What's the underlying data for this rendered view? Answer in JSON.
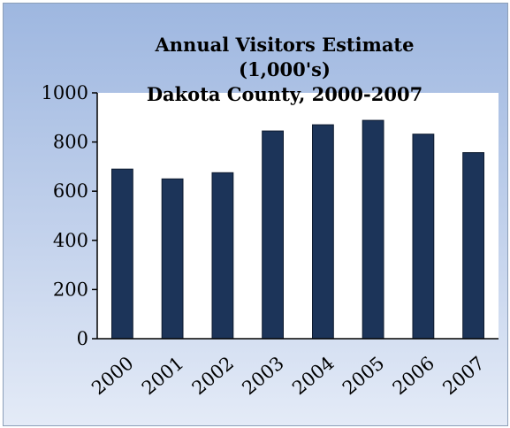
{
  "chart_data": {
    "type": "bar",
    "title_lines": [
      "Annual Visitors Estimate",
      "(1,000's)",
      "Dakota County, 2000-2007"
    ],
    "categories": [
      "2000",
      "2001",
      "2002",
      "2003",
      "2004",
      "2005",
      "2006",
      "2007"
    ],
    "values": [
      690,
      650,
      675,
      845,
      870,
      888,
      832,
      757
    ],
    "ylim": [
      0,
      1000
    ],
    "yticks": [
      "0",
      "200",
      "400",
      "600",
      "800",
      "1000"
    ],
    "grid": false,
    "legend": "none",
    "colors": {
      "bar": "#1c3459",
      "bar_outline": "#0d1a2e",
      "plot_background": "#ffffff",
      "frame_top": "#9eb7e0",
      "frame_bottom": "#e4ebf7"
    }
  }
}
